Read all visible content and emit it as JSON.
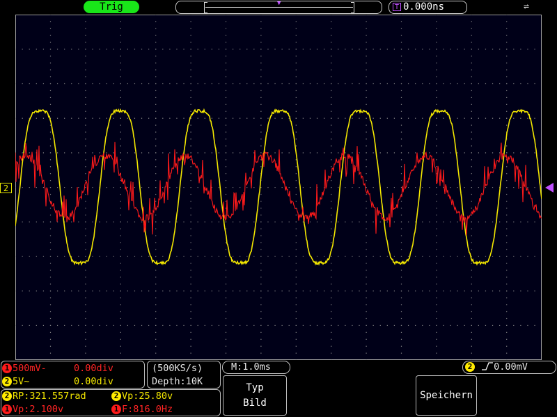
{
  "top_bar": {
    "trigger_status": "Trig",
    "trigger_marker": "T",
    "horizontal_position": "0.000ns",
    "usb_icon": "usb-icon"
  },
  "grid": {
    "divisions_x": 15,
    "divisions_y": 10
  },
  "channel_markers": {
    "ch2_ground": "2"
  },
  "channels": {
    "ch1": {
      "number": "1",
      "scale": "500mV",
      "coupling_symbol": "-",
      "offset": "0.00div",
      "color": "#ff2424"
    },
    "ch2": {
      "number": "2",
      "scale": "5V",
      "coupling_symbol": "~",
      "offset": "0.00div",
      "color": "#f4e800"
    }
  },
  "acquisition": {
    "sample_rate": "(500KS/s)",
    "depth": "Depth:10K"
  },
  "timebase": "M:1.0ms",
  "trigger": {
    "source": "2",
    "slope_icon": "rising-edge-icon",
    "level": "0.00mV"
  },
  "measurements": [
    {
      "ch": "2",
      "text": "RP:321.557rad"
    },
    {
      "ch": "2",
      "text": "Vp:25.80v"
    },
    {
      "ch": "1",
      "text": "Vp:2.100v"
    },
    {
      "ch": "1",
      "text": "F:816.0Hz"
    }
  ],
  "softkeys": {
    "type": {
      "title": "Typ",
      "value": "Bild"
    },
    "save": {
      "label": "Speichern"
    }
  }
}
